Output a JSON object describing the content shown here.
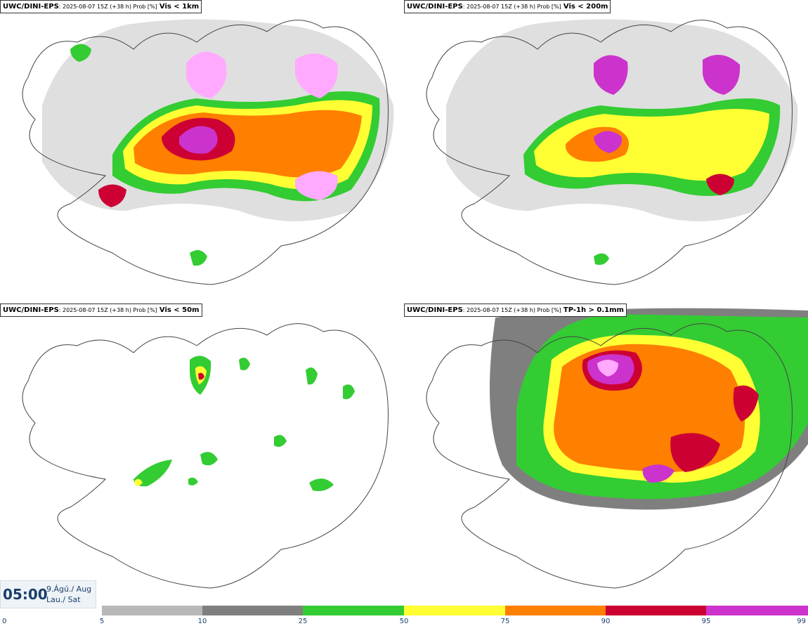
{
  "panels": [
    {
      "model": "UWC/DINI-EPS",
      "meta": ": 2025-08-07 15Z (+38 h) Prob [%]",
      "variable": "Vis < 1km"
    },
    {
      "model": "UWC/DINI-EPS",
      "meta": ": 2025-08-07 15Z (+38 h) Prob [%]",
      "variable": "Vis < 200m"
    },
    {
      "model": "UWC/DINI-EPS",
      "meta": ": 2025-08-07 15Z (+38 h) Prob [%]",
      "variable": "Vis < 50m"
    },
    {
      "model": "UWC/DINI-EPS",
      "meta": ": 2025-08-07 15Z (+38 h) Prob [%]",
      "variable": "TP-1h > 0.1mm"
    }
  ],
  "valid_time": {
    "time": "05:00",
    "date_line1": "9.Ágú./ Aug",
    "date_line2": "Lau./ Sat"
  },
  "legend": {
    "ticks": [
      "0",
      "5",
      "10",
      "25",
      "50",
      "75",
      "90",
      "95",
      "99"
    ],
    "colors": [
      "#ffffff",
      "#b8b8b8",
      "#7f7f7f",
      "#33cc33",
      "#ffff33",
      "#ff7f00",
      "#cc0033",
      "#cc33cc",
      "#ffaaff"
    ]
  }
}
